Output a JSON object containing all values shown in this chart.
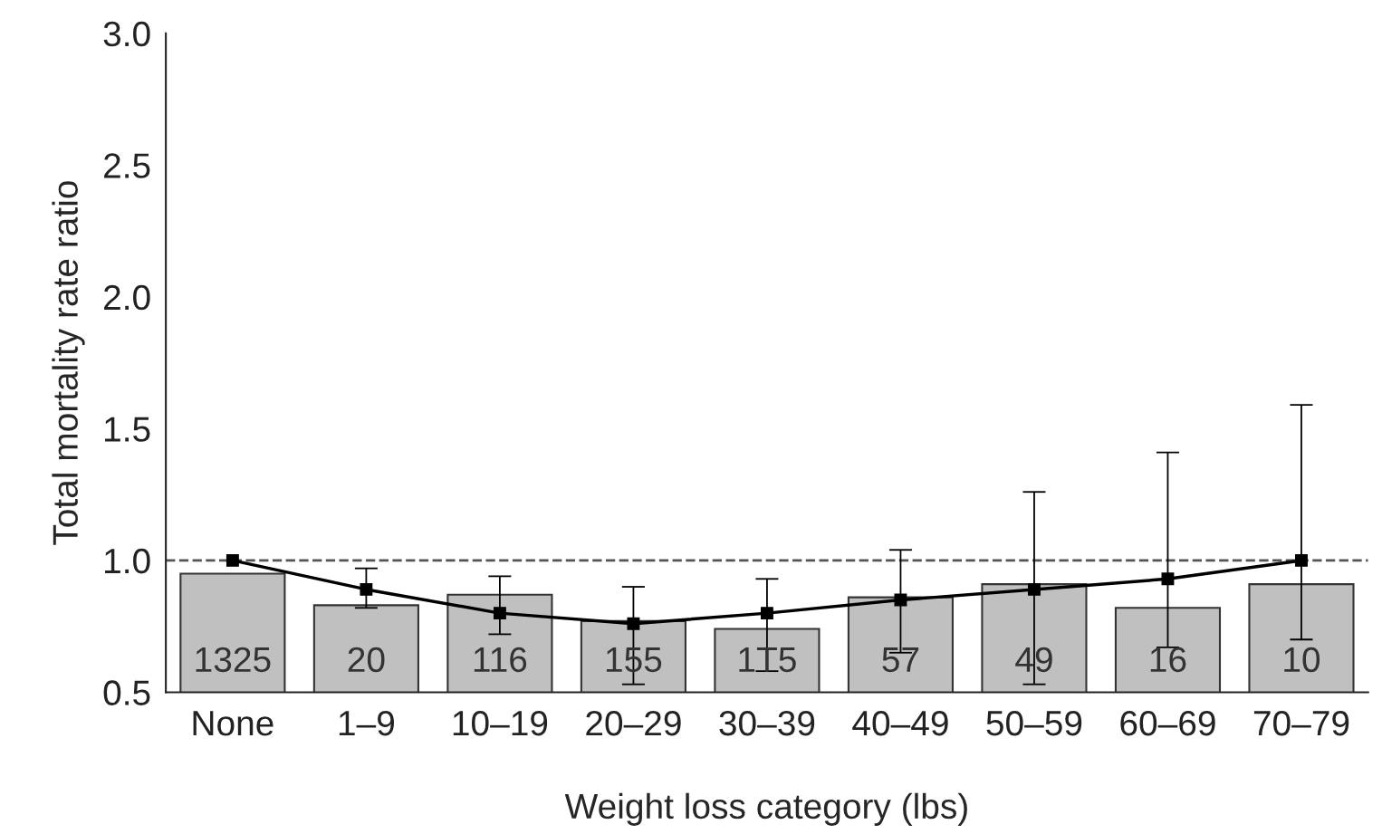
{
  "chart_data": {
    "type": "bar",
    "xlabel": "Weight loss category (lbs)",
    "ylabel": "Total mortality rate ratio",
    "categories": [
      "None",
      "1–9",
      "10–19",
      "20–29",
      "30–39",
      "40–49",
      "50–59",
      "60–69",
      "70–79"
    ],
    "series": [
      {
        "color": "#c0c0c0",
        "values": [
          0.95,
          0.83,
          0.87,
          0.77,
          0.74,
          0.86,
          0.91,
          0.82,
          0.91
        ]
      },
      {
        "type": "line",
        "color": "#000000",
        "marker": "square",
        "line_style": "solid",
        "values": [
          1.0,
          0.89,
          0.8,
          0.76,
          0.8,
          0.85,
          0.89,
          0.93,
          1.0
        ],
        "errors": [
          null,
          [
            0.82,
            0.97
          ],
          [
            0.72,
            0.94
          ],
          [
            0.53,
            0.9
          ],
          [
            0.58,
            0.93
          ],
          [
            0.65,
            1.04
          ],
          [
            0.53,
            1.26
          ],
          [
            0.67,
            1.41
          ],
          [
            0.7,
            1.59
          ]
        ]
      }
    ],
    "ylim": [
      0.5,
      3.0
    ],
    "yticks": [
      0.5,
      {
        "value": 1,
        "label": "1.0"
      },
      1.5,
      {
        "value": 2,
        "label": "2.0"
      },
      2.5,
      {
        "value": 3,
        "label": "3.0"
      }
    ],
    "ref_lines": [
      {
        "axis": "y",
        "value": 1.0,
        "label": null,
        "color": "#555555",
        "line_style": "dashed"
      }
    ],
    "annotations": [
      "1325",
      "20",
      "116",
      "155",
      "1T5",
      "57",
      "49",
      "16",
      "10"
    ],
    "grid": false,
    "legend": false
  }
}
